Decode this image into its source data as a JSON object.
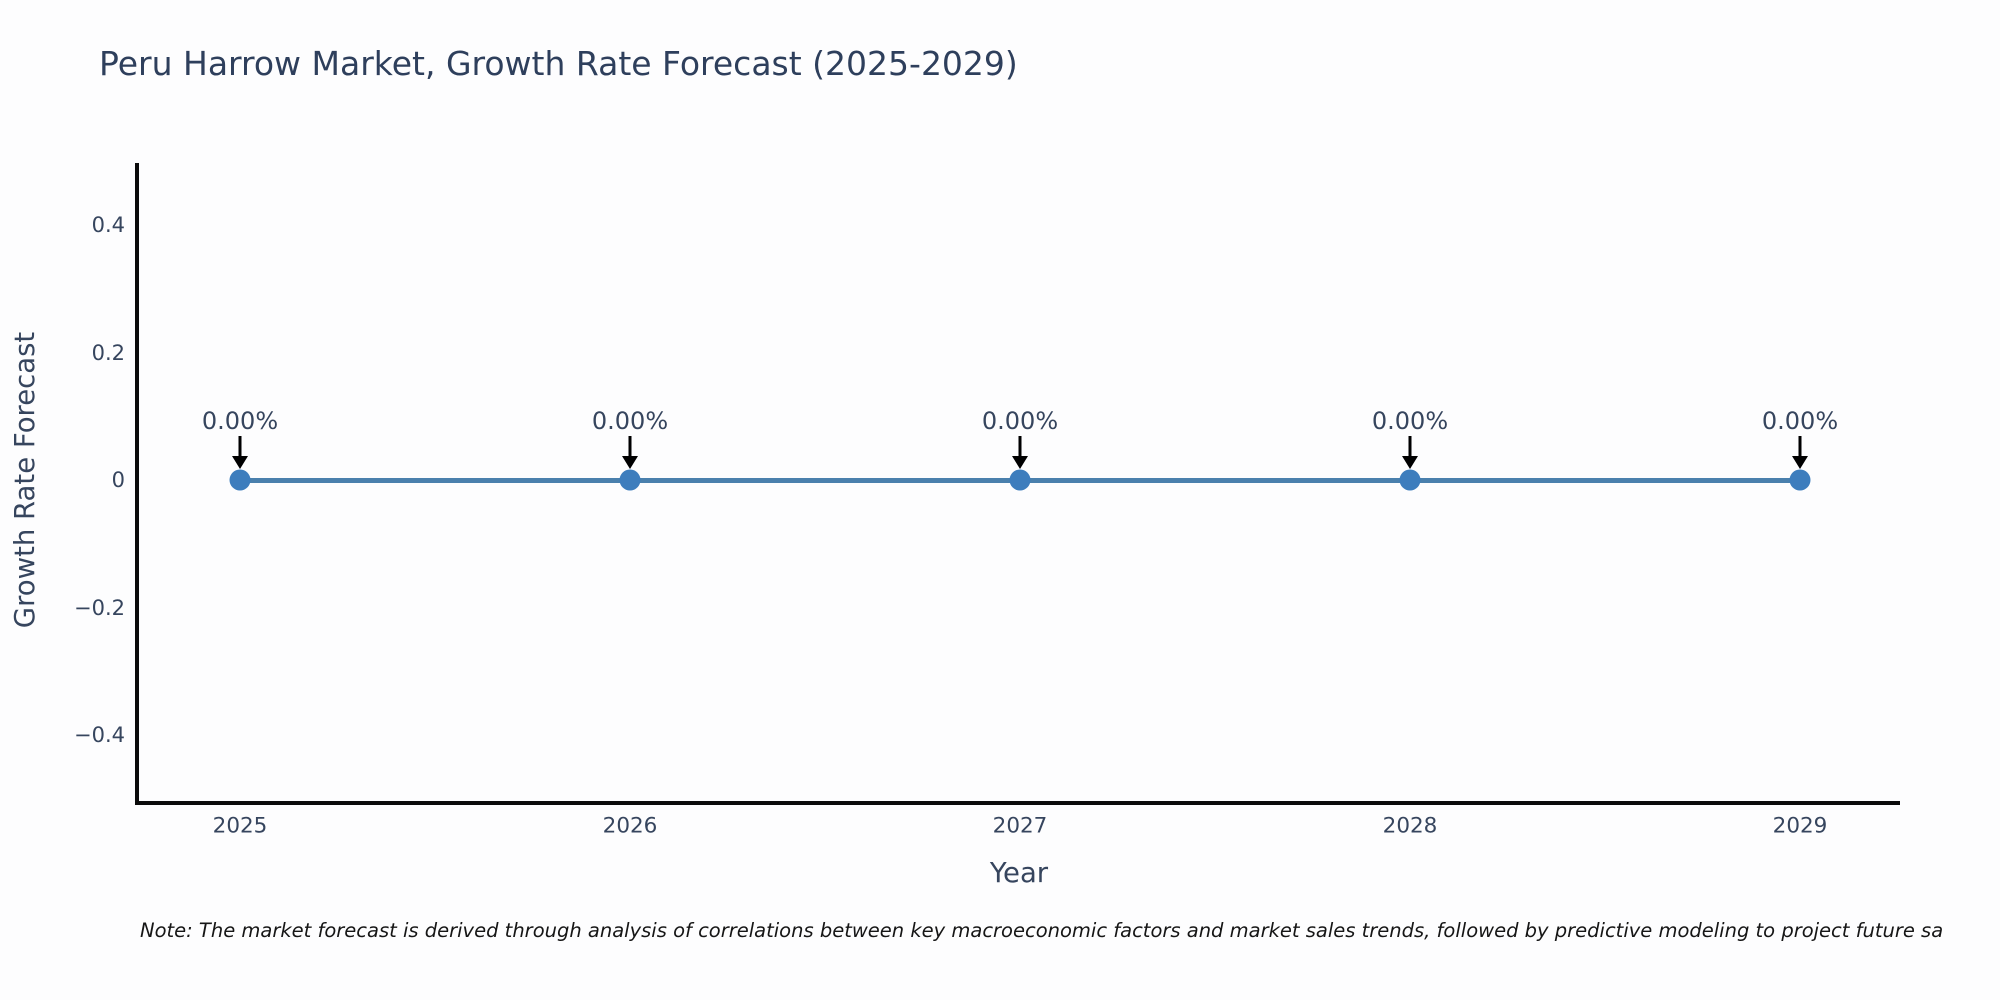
{
  "title": "Peru Harrow Market, Growth Rate Forecast (2025-2029)",
  "note": "Note: The market forecast is derived through analysis of correlations between key macroeconomic factors and market sales trends, followed by predictive modeling to project future sa",
  "chart_data": {
    "type": "line",
    "title": "Peru Harrow Market, Growth Rate Forecast (2025-2029)",
    "xlabel": "Year",
    "ylabel": "Growth Rate Forecast",
    "x": [
      2025,
      2026,
      2027,
      2028,
      2029
    ],
    "series": [
      {
        "name": "Growth Rate Forecast",
        "values": [
          0,
          0,
          0,
          0,
          0
        ]
      }
    ],
    "point_labels": [
      "0.00%",
      "0.00%",
      "0.00%",
      "0.00%",
      "0.00%"
    ],
    "xtick_labels": [
      "2025",
      "2026",
      "2027",
      "2028",
      "2029"
    ],
    "ytick_values": [
      0.4,
      0.2,
      0,
      -0.2,
      -0.4
    ],
    "ytick_labels": [
      "0.4",
      "0.2",
      "0",
      "−0.2",
      "−0.4"
    ],
    "ylim": [
      -0.5,
      0.5
    ],
    "grid": false,
    "legend_position": "none",
    "line_color": "#4a80ad",
    "marker_color": "#3d7dbd",
    "arrow_color": "#000000",
    "axis_color": "#0b0b0b",
    "text_color": "#36455e",
    "title_color": "#2e3f5c"
  }
}
